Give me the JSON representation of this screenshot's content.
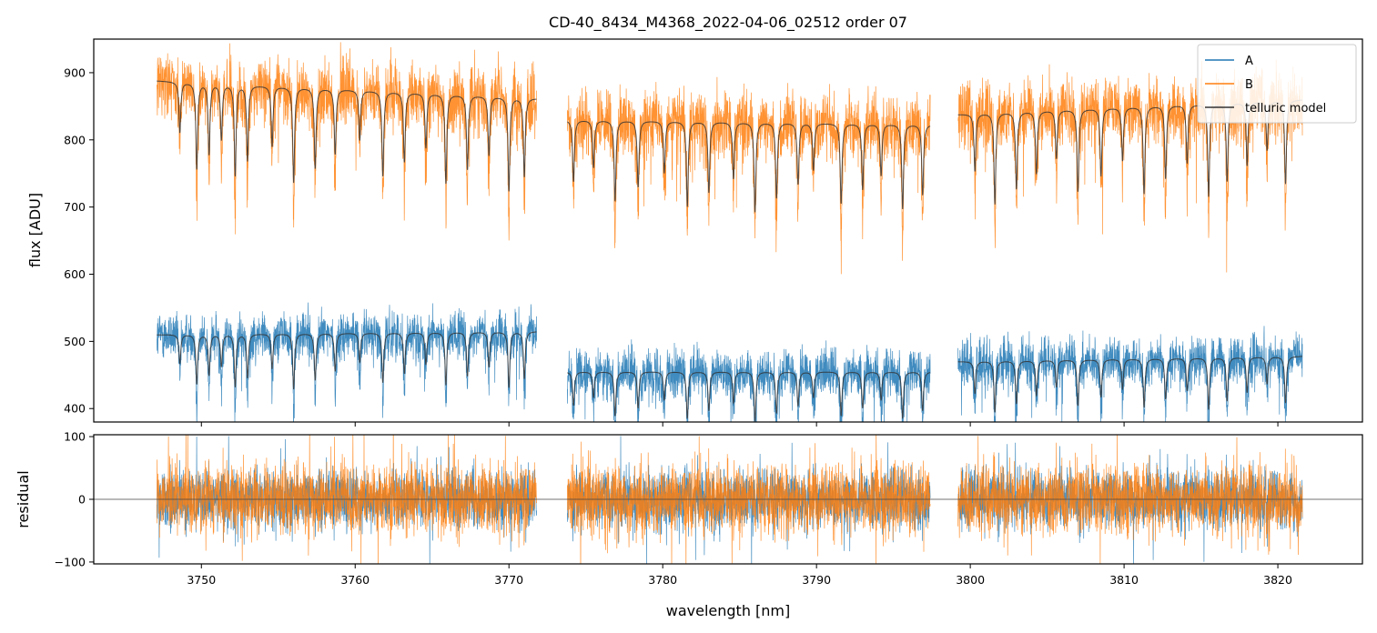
{
  "chart_data": {
    "title": "CD-40_8434_M4368_2022-04-06_02512  order 07",
    "colors": {
      "A": "#1f77b4",
      "B": "#ff7f0e",
      "telluric": "#333333"
    },
    "segments": [
      [
        3747.1,
        3771.8
      ],
      [
        3773.8,
        3797.4
      ],
      [
        3799.2,
        3821.6
      ]
    ],
    "panels": [
      {
        "type": "line",
        "role": "flux",
        "ylabel": "flux [ADU]",
        "xlim": [
          3743.0,
          3825.5
        ],
        "ylim": [
          380,
          950
        ],
        "yticks": [
          400,
          500,
          600,
          700,
          800,
          900
        ],
        "grid": false,
        "legend": {
          "position": "top-right",
          "entries": [
            "A",
            "B",
            "telluric model"
          ]
        },
        "series": [
          {
            "name": "A",
            "color": "#1f77b4",
            "levels": [
              [
                3747.1,
                510
              ],
              [
                3771.8,
                515
              ],
              [
                3773.8,
                455
              ],
              [
                3797.4,
                455
              ],
              [
                3799.2,
                470
              ],
              [
                3821.6,
                478
              ]
            ],
            "noise": 32
          },
          {
            "name": "B",
            "color": "#ff7f0e",
            "levels": [
              [
                3747.1,
                888
              ],
              [
                3771.8,
                862
              ],
              [
                3773.8,
                830
              ],
              [
                3797.4,
                823
              ],
              [
                3799.2,
                838
              ],
              [
                3821.6,
                860
              ]
            ],
            "noise": 45
          },
          {
            "name": "telluric model",
            "color": "#333333"
          }
        ],
        "absorption_lines": [
          3748.6,
          3749.7,
          3750.5,
          3751.3,
          3752.2,
          3753.0,
          3754.6,
          3756.0,
          3757.4,
          3758.7,
          3760.3,
          3761.8,
          3763.2,
          3764.6,
          3765.9,
          3767.3,
          3768.7,
          3770.0,
          3771.0,
          3774.2,
          3775.5,
          3776.9,
          3778.4,
          3780.1,
          3781.6,
          3783.0,
          3784.6,
          3786.0,
          3787.4,
          3788.8,
          3789.8,
          3791.6,
          3793.0,
          3794.2,
          3795.6,
          3796.9,
          3800.3,
          3801.6,
          3803.0,
          3804.3,
          3805.6,
          3807.0,
          3808.5,
          3809.9,
          3811.3,
          3812.7,
          3814.1,
          3815.5,
          3816.7,
          3818.0,
          3819.3,
          3820.5
        ]
      },
      {
        "type": "line",
        "role": "residual",
        "ylabel": "residual",
        "xlabel": "wavelength [nm]",
        "xlim": [
          3743.0,
          3825.5
        ],
        "ylim": [
          -103,
          103
        ],
        "yticks": [
          -100,
          0,
          100
        ],
        "xticks": [
          3750,
          3760,
          3770,
          3780,
          3790,
          3800,
          3810,
          3820
        ],
        "zero_line": 0,
        "series": [
          {
            "name": "A",
            "color": "#1f77b4",
            "noise": 38
          },
          {
            "name": "B",
            "color": "#ff7f0e",
            "noise": 45
          }
        ]
      }
    ]
  }
}
